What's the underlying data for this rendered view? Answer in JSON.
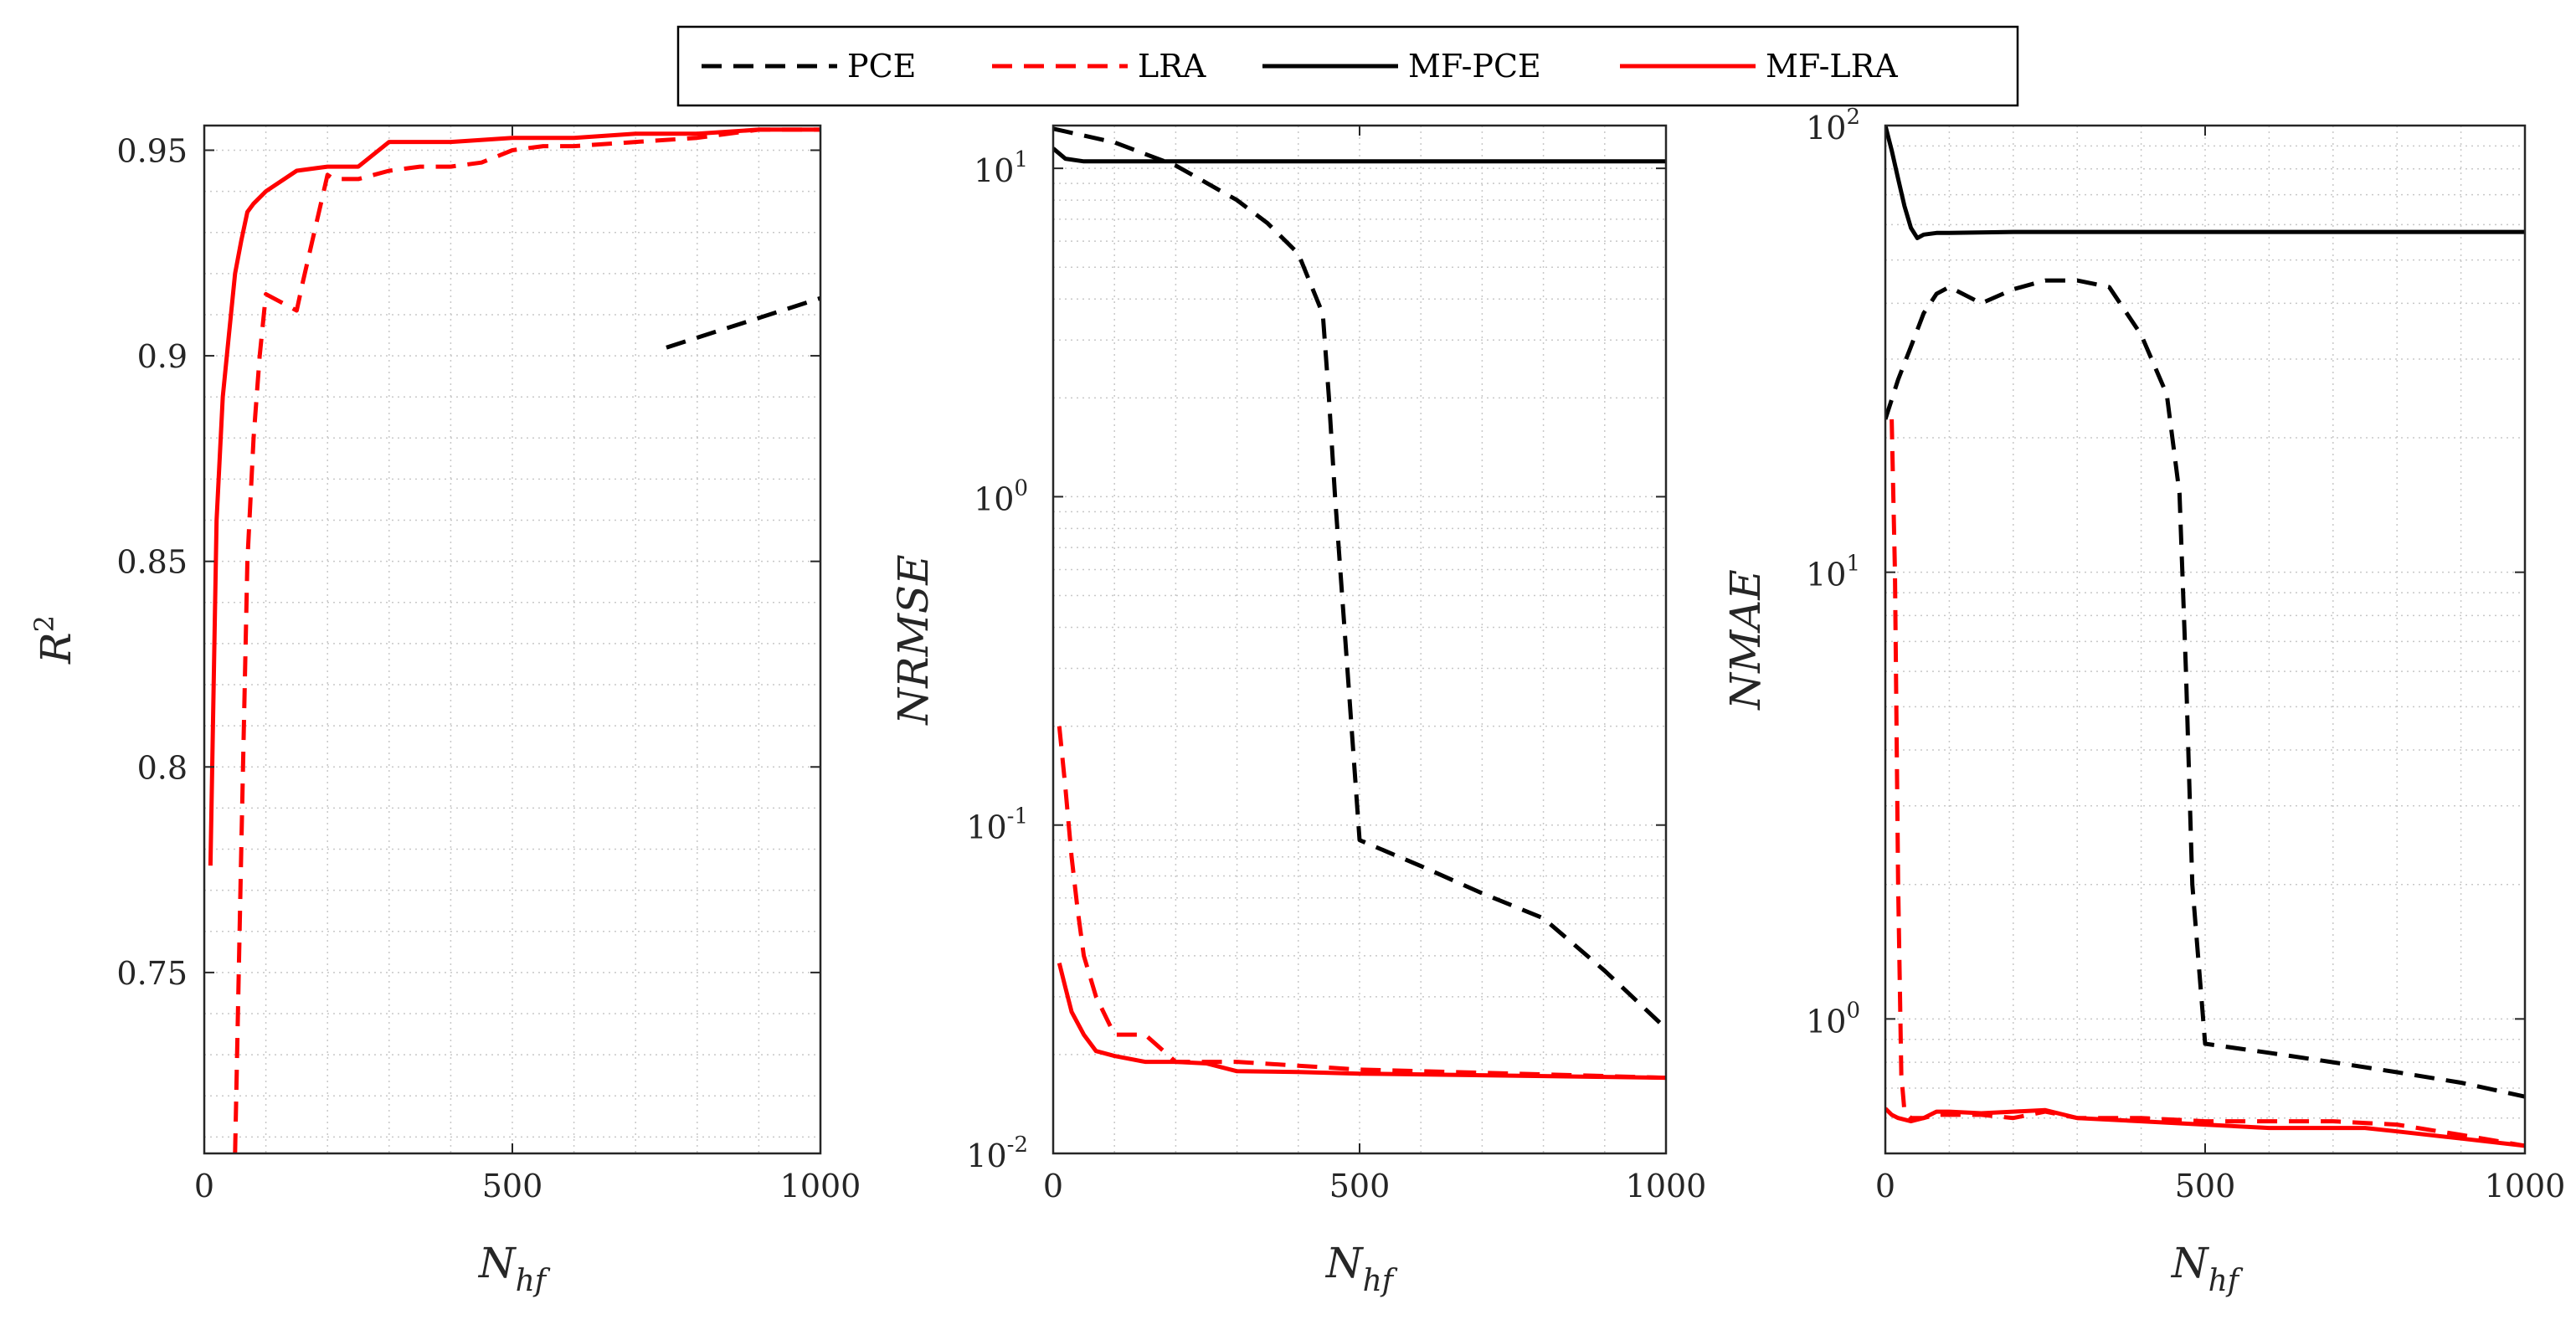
{
  "legend": {
    "entries": [
      {
        "label": "PCE",
        "color": "#000000",
        "dash": true
      },
      {
        "label": "LRA",
        "color": "#ff0000",
        "dash": true
      },
      {
        "label": "MF-PCE",
        "color": "#000000",
        "dash": false
      },
      {
        "label": "MF-LRA",
        "color": "#ff0000",
        "dash": false
      }
    ]
  },
  "chart_data": [
    {
      "type": "line",
      "ylabel": "R",
      "ylabel_sup": "2",
      "xlabel": "N",
      "xlabel_sub": "hf",
      "xlim": [
        0,
        1000
      ],
      "ylim": [
        0.706,
        0.956
      ],
      "yscale": "linear",
      "xticks": [
        0,
        500,
        1000
      ],
      "yticks": [
        0.75,
        0.8,
        0.85,
        0.9,
        0.95
      ],
      "ytick_labels": [
        "0.75",
        "0.8",
        "0.85",
        "0.9",
        "0.95"
      ],
      "grid": true,
      "series": [
        {
          "name": "PCE",
          "color": "#000000",
          "dash": true,
          "x": [
            750,
            1000
          ],
          "y": [
            0.902,
            0.914
          ]
        },
        {
          "name": "LRA",
          "color": "#ff0000",
          "dash": true,
          "x": [
            50,
            60,
            70,
            80,
            90,
            100,
            150,
            160,
            200,
            210,
            250,
            300,
            350,
            400,
            450,
            500,
            550,
            600,
            700,
            800,
            900,
            1000
          ],
          "y": [
            0.706,
            0.78,
            0.85,
            0.88,
            0.9,
            0.915,
            0.911,
            0.918,
            0.944,
            0.943,
            0.943,
            0.945,
            0.946,
            0.946,
            0.947,
            0.95,
            0.951,
            0.951,
            0.952,
            0.953,
            0.955,
            0.955
          ]
        },
        {
          "name": "MF-PCE",
          "color": "#000000",
          "dash": false,
          "x": [],
          "y": []
        },
        {
          "name": "MF-LRA",
          "color": "#ff0000",
          "dash": false,
          "x": [
            10,
            20,
            30,
            40,
            50,
            60,
            70,
            80,
            100,
            150,
            200,
            250,
            300,
            400,
            500,
            600,
            700,
            800,
            900,
            1000
          ],
          "y": [
            0.776,
            0.86,
            0.89,
            0.905,
            0.92,
            0.928,
            0.935,
            0.937,
            0.94,
            0.945,
            0.946,
            0.946,
            0.952,
            0.952,
            0.953,
            0.953,
            0.954,
            0.954,
            0.955,
            0.955
          ]
        }
      ]
    },
    {
      "type": "line",
      "ylabel": "NRMSE",
      "ylabel_sup": "",
      "xlabel": "N",
      "xlabel_sub": "hf",
      "xlim": [
        0,
        1000
      ],
      "ylim": [
        0.01,
        13.5
      ],
      "yscale": "log",
      "xticks": [
        0,
        500,
        1000
      ],
      "yticks": [
        0.01,
        0.1,
        1,
        10
      ],
      "ytick_labels": [
        [
          "10",
          "-2"
        ],
        [
          "10",
          "-1"
        ],
        [
          "10",
          "0"
        ],
        [
          "10",
          "1"
        ]
      ],
      "grid": true,
      "series": [
        {
          "name": "PCE",
          "color": "#000000",
          "dash": true,
          "x": [
            0,
            100,
            200,
            300,
            350,
            400,
            440,
            450,
            460,
            480,
            500,
            600,
            700,
            800,
            900,
            1000
          ],
          "y": [
            13.2,
            12.0,
            10.2,
            8.0,
            6.8,
            5.5,
            3.6,
            2.0,
            1.0,
            0.3,
            0.09,
            0.075,
            0.062,
            0.052,
            0.036,
            0.024
          ]
        },
        {
          "name": "LRA",
          "color": "#ff0000",
          "dash": true,
          "x": [
            10,
            20,
            30,
            40,
            50,
            70,
            100,
            150,
            200,
            250,
            300,
            400,
            500,
            600,
            700,
            800,
            900,
            1000
          ],
          "y": [
            0.2,
            0.13,
            0.08,
            0.055,
            0.04,
            0.03,
            0.023,
            0.023,
            0.019,
            0.019,
            0.019,
            0.0185,
            0.018,
            0.0178,
            0.0176,
            0.0174,
            0.0172,
            0.017
          ]
        },
        {
          "name": "MF-PCE",
          "color": "#000000",
          "dash": false,
          "x": [
            0,
            20,
            50,
            100,
            200,
            500,
            800,
            1000
          ],
          "y": [
            11.5,
            10.7,
            10.5,
            10.5,
            10.5,
            10.5,
            10.5,
            10.5
          ]
        },
        {
          "name": "MF-LRA",
          "color": "#ff0000",
          "dash": false,
          "x": [
            10,
            20,
            30,
            50,
            70,
            100,
            150,
            200,
            250,
            300,
            400,
            500,
            600,
            700,
            800,
            900,
            1000
          ],
          "y": [
            0.038,
            0.032,
            0.027,
            0.023,
            0.0205,
            0.0198,
            0.019,
            0.019,
            0.0188,
            0.0178,
            0.0177,
            0.0175,
            0.0174,
            0.0173,
            0.0172,
            0.0171,
            0.017
          ]
        }
      ]
    },
    {
      "type": "line",
      "ylabel": "NMAE",
      "ylabel_sup": "",
      "xlabel": "N",
      "xlabel_sub": "hf",
      "xlim": [
        0,
        1000
      ],
      "ylim": [
        0.5,
        100
      ],
      "yscale": "log",
      "xticks": [
        0,
        500,
        1000
      ],
      "yticks": [
        1,
        10,
        100
      ],
      "ytick_labels": [
        [
          "10",
          "0"
        ],
        [
          "10",
          "1"
        ],
        [
          "10",
          "2"
        ]
      ],
      "grid": true,
      "series": [
        {
          "name": "PCE",
          "color": "#000000",
          "dash": true,
          "x": [
            0,
            20,
            40,
            60,
            80,
            100,
            150,
            200,
            250,
            300,
            350,
            400,
            440,
            460,
            470,
            480,
            500,
            600,
            700,
            800,
            900,
            1000
          ],
          "y": [
            22,
            27,
            32,
            38,
            42,
            43.5,
            40,
            43,
            45,
            45,
            43.5,
            34,
            25,
            15,
            6,
            2,
            0.88,
            0.84,
            0.8,
            0.76,
            0.72,
            0.67
          ]
        },
        {
          "name": "LRA",
          "color": "#ff0000",
          "dash": true,
          "x": [
            10,
            15,
            20,
            25,
            30,
            40,
            60,
            80,
            100,
            150,
            200,
            250,
            300,
            400,
            500,
            600,
            700,
            800,
            900,
            1000
          ],
          "y": [
            22,
            10,
            2,
            0.75,
            0.62,
            0.6,
            0.6,
            0.61,
            0.61,
            0.61,
            0.6,
            0.62,
            0.6,
            0.6,
            0.59,
            0.59,
            0.59,
            0.58,
            0.55,
            0.52
          ]
        },
        {
          "name": "MF-PCE",
          "color": "#000000",
          "dash": false,
          "x": [
            0,
            10,
            20,
            30,
            40,
            50,
            60,
            80,
            100,
            200,
            500,
            800,
            1000
          ],
          "y": [
            100,
            88,
            76,
            66,
            59,
            56,
            57,
            57.5,
            57.5,
            57.8,
            57.8,
            57.8,
            57.8
          ]
        },
        {
          "name": "MF-LRA",
          "color": "#ff0000",
          "dash": false,
          "x": [
            0,
            10,
            20,
            40,
            60,
            80,
            100,
            150,
            200,
            250,
            300,
            400,
            500,
            600,
            700,
            750,
            800,
            900,
            1000
          ],
          "y": [
            0.63,
            0.61,
            0.6,
            0.59,
            0.6,
            0.62,
            0.62,
            0.615,
            0.62,
            0.625,
            0.6,
            0.59,
            0.58,
            0.57,
            0.57,
            0.57,
            0.56,
            0.54,
            0.52
          ]
        }
      ]
    }
  ]
}
